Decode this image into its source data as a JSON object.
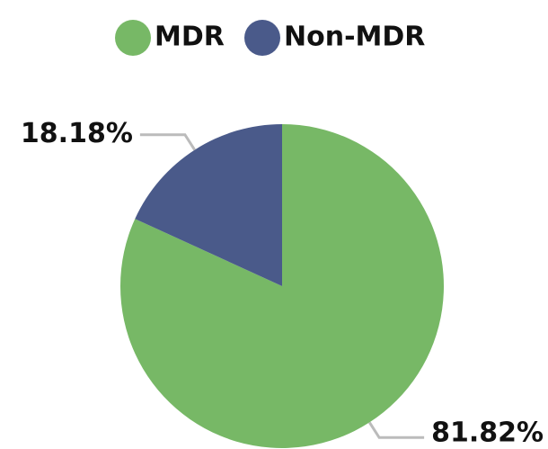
{
  "chart_data": {
    "type": "pie",
    "categories": [
      "MDR",
      "Non-MDR"
    ],
    "values": [
      81.82,
      18.18
    ],
    "value_labels": [
      "81.82%",
      "18.18%"
    ],
    "colors": [
      "#77b866",
      "#4a5a8a"
    ],
    "legend": "top"
  }
}
